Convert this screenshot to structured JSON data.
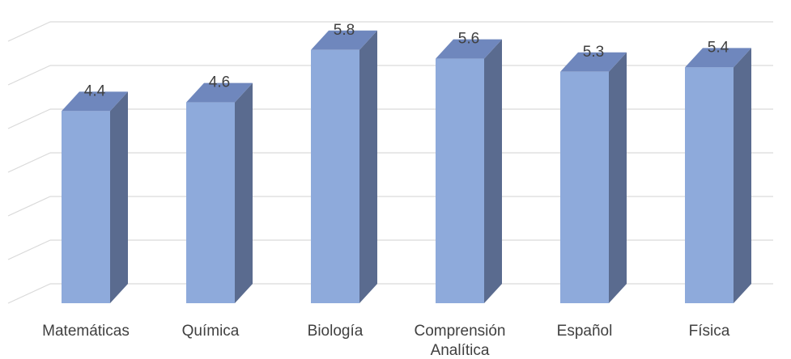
{
  "chart_data": {
    "type": "bar",
    "style": "3d-column",
    "categories": [
      "Matemáticas",
      "Química",
      "Biología",
      "Comprensión Analítica",
      "Español",
      "Física"
    ],
    "category_lines": [
      [
        "Matemáticas"
      ],
      [
        "Química"
      ],
      [
        "Biología"
      ],
      [
        "Comprensión",
        "Analítica"
      ],
      [
        "Español"
      ],
      [
        "Física"
      ]
    ],
    "values": [
      4.4,
      4.6,
      5.8,
      5.6,
      5.3,
      5.4
    ],
    "data_labels": [
      "4.4",
      "4.6",
      "5.8",
      "5.6",
      "5.3",
      "5.4"
    ],
    "ylim": [
      0,
      7
    ],
    "grid": true,
    "legend": "none",
    "colors": {
      "front": "#8eaadb",
      "side": "#5a6b8f",
      "top": "#6f87bd",
      "grid": "#d9d9d9"
    }
  }
}
